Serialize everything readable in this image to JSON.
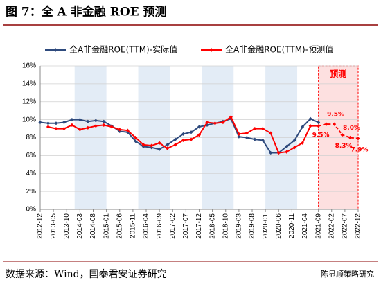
{
  "chart_data": {
    "type": "line",
    "title": "图 7：全 A 非金融 ROE 预测",
    "source": "数据来源：Wind，国泰君安证券研究",
    "watermark": "陈显顺策略研究",
    "annotation": "预测",
    "forecast_start": "2021-09",
    "x_ticks": [
      "2012-12",
      "2013-05",
      "2013-10",
      "2014-03",
      "2014-08",
      "2015-01",
      "2015-06",
      "2015-11",
      "2016-04",
      "2016-09",
      "2017-02",
      "2017-07",
      "2017-12",
      "2018-05",
      "2018-10",
      "2019-03",
      "2019-08",
      "2020-01",
      "2020-06",
      "2020-11",
      "2021-04",
      "2021-09",
      "2022-02",
      "2022-07",
      "2022-12"
    ],
    "ylim": [
      0,
      16
    ],
    "yticks": [
      {
        "value": 0,
        "label": "0%"
      },
      {
        "value": 2,
        "label": "2%"
      },
      {
        "value": 4,
        "label": "4%"
      },
      {
        "value": 6,
        "label": "6%"
      },
      {
        "value": 8,
        "label": "8%"
      },
      {
        "value": 10,
        "label": "10%"
      },
      {
        "value": 12,
        "label": "12%"
      },
      {
        "value": 14,
        "label": "14%"
      },
      {
        "value": 16,
        "label": "16%"
      }
    ],
    "grid": true,
    "series": [
      {
        "name": "全A非金融ROE(TTM)-实际值",
        "color": "#2e4a7d",
        "x": [
          "2012-12",
          "2013-03",
          "2013-06",
          "2013-09",
          "2013-12",
          "2014-03",
          "2014-06",
          "2014-09",
          "2014-12",
          "2015-03",
          "2015-06",
          "2015-09",
          "2015-12",
          "2016-03",
          "2016-06",
          "2016-09",
          "2016-12",
          "2017-03",
          "2017-06",
          "2017-09",
          "2017-12",
          "2018-03",
          "2018-06",
          "2018-09",
          "2018-12",
          "2019-03",
          "2019-06",
          "2019-09",
          "2019-12",
          "2020-03",
          "2020-06",
          "2020-09",
          "2020-12",
          "2021-03",
          "2021-06",
          "2021-09"
        ],
        "values": [
          9.7,
          9.6,
          9.6,
          9.7,
          10.0,
          10.0,
          9.8,
          9.9,
          9.8,
          9.3,
          8.7,
          8.6,
          7.6,
          7.0,
          6.9,
          6.7,
          7.2,
          7.8,
          8.4,
          8.6,
          9.2,
          9.4,
          9.6,
          9.8,
          10.1,
          8.1,
          8.0,
          7.8,
          7.7,
          6.3,
          6.3,
          7.0,
          7.7,
          9.2,
          10.1,
          9.7
        ]
      },
      {
        "name": "全A非金融ROE(TTM)-预测值",
        "color": "#ff0000",
        "x": [
          "2013-03",
          "2013-06",
          "2013-09",
          "2013-12",
          "2014-03",
          "2014-06",
          "2014-09",
          "2014-12",
          "2015-03",
          "2015-06",
          "2015-09",
          "2015-12",
          "2016-03",
          "2016-06",
          "2016-09",
          "2016-12",
          "2017-03",
          "2017-06",
          "2017-09",
          "2017-12",
          "2018-03",
          "2018-06",
          "2018-09",
          "2018-12",
          "2019-03",
          "2019-06",
          "2019-09",
          "2019-12",
          "2020-03",
          "2020-06",
          "2020-09",
          "2020-12",
          "2021-03",
          "2021-06",
          "2021-09",
          "2021-12",
          "2022-03",
          "2022-06",
          "2022-09",
          "2022-12"
        ],
        "values": [
          9.2,
          9.0,
          9.0,
          9.4,
          8.9,
          9.1,
          9.3,
          9.4,
          9.2,
          8.9,
          8.8,
          8.0,
          7.2,
          7.1,
          7.4,
          6.8,
          7.2,
          7.7,
          7.8,
          8.3,
          9.7,
          9.6,
          9.7,
          10.3,
          8.4,
          8.5,
          9.0,
          9.0,
          8.5,
          6.3,
          6.4,
          6.9,
          7.4,
          9.3,
          9.3,
          9.5,
          9.5,
          8.3,
          8.0,
          7.9
        ],
        "value_labels": [
          null,
          null,
          null,
          null,
          null,
          null,
          null,
          null,
          null,
          null,
          null,
          null,
          null,
          null,
          null,
          null,
          null,
          null,
          null,
          null,
          null,
          null,
          null,
          null,
          null,
          null,
          null,
          null,
          null,
          null,
          null,
          null,
          null,
          null,
          null,
          "9.5%",
          "9.5%",
          "8.3%",
          "8.0%",
          "7.9%"
        ]
      }
    ]
  }
}
